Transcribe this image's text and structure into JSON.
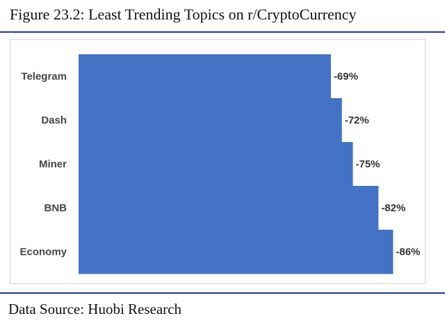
{
  "figure": {
    "title": "Figure  23.2: Least Trending Topics on r/CryptoCurrency",
    "source": "Data Source: Huobi Research"
  },
  "chart_data": {
    "type": "bar",
    "orientation": "horizontal",
    "categories": [
      "Telegram",
      "Dash",
      "Miner",
      "BNB",
      "Economy"
    ],
    "values": [
      -69,
      -72,
      -75,
      -82,
      -86
    ],
    "value_labels": [
      "-69%",
      "-72%",
      "-75%",
      "-82%",
      "-86%"
    ],
    "title": "",
    "xlabel": "",
    "ylabel": "",
    "xlim": [
      0,
      -100
    ],
    "bar_color": "#4472c4",
    "grid": false,
    "legend": "none"
  }
}
